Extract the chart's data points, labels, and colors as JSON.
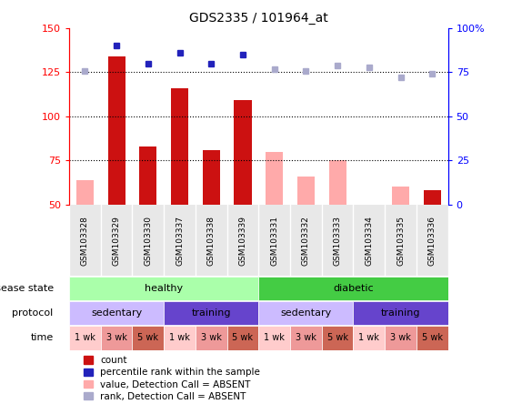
{
  "title": "GDS2335 / 101964_at",
  "samples": [
    "GSM103328",
    "GSM103329",
    "GSM103330",
    "GSM103337",
    "GSM103338",
    "GSM103339",
    "GSM103331",
    "GSM103332",
    "GSM103333",
    "GSM103334",
    "GSM103335",
    "GSM103336"
  ],
  "bar_values": [
    null,
    134,
    83,
    116,
    81,
    109,
    null,
    null,
    null,
    null,
    null,
    58
  ],
  "bar_absent_values": [
    64,
    null,
    null,
    null,
    null,
    null,
    80,
    66,
    75,
    null,
    60,
    null
  ],
  "rank_values_pct": [
    null,
    90,
    80,
    86,
    80,
    85,
    null,
    null,
    null,
    null,
    null,
    null
  ],
  "rank_absent_values_pct": [
    76,
    null,
    null,
    null,
    null,
    null,
    77,
    76,
    79,
    78,
    72,
    74
  ],
  "ylim_left": [
    50,
    150
  ],
  "ylim_right": [
    0,
    100
  ],
  "yticks_left": [
    50,
    75,
    100,
    125,
    150
  ],
  "ytick_labels_left": [
    "50",
    "75",
    "100",
    "125",
    "150"
  ],
  "yticks_right": [
    0,
    25,
    50,
    75,
    100
  ],
  "ytick_labels_right": [
    "0",
    "25",
    "50",
    "75",
    "100%"
  ],
  "dotted_lines_pct": [
    25,
    50,
    75
  ],
  "bar_color_present": "#cc1111",
  "bar_color_absent": "#ffaaaa",
  "rank_color_present": "#2222bb",
  "rank_color_absent": "#aaaacc",
  "bg_color": "#e8e8e8",
  "disease_state_healthy_color": "#aaffaa",
  "disease_state_diabetic_color": "#44cc44",
  "disease_state_label": "disease state",
  "protocol_sedentary_color": "#ccbbff",
  "protocol_training_color": "#6644cc",
  "protocol_label": "protocol",
  "time_colors": [
    "#ffcccc",
    "#ee9999",
    "#cc6655"
  ],
  "time_label": "time",
  "time_labels": [
    "1 wk",
    "3 wk",
    "5 wk",
    "1 wk",
    "3 wk",
    "5 wk",
    "1 wk",
    "3 wk",
    "5 wk",
    "1 wk",
    "3 wk",
    "5 wk"
  ],
  "time_color_indices": [
    0,
    1,
    2,
    0,
    1,
    2,
    0,
    1,
    2,
    0,
    1,
    2
  ],
  "legend_items": [
    {
      "color": "#cc1111",
      "label": "count"
    },
    {
      "color": "#2222bb",
      "label": "percentile rank within the sample"
    },
    {
      "color": "#ffaaaa",
      "label": "value, Detection Call = ABSENT"
    },
    {
      "color": "#aaaacc",
      "label": "rank, Detection Call = ABSENT"
    }
  ]
}
